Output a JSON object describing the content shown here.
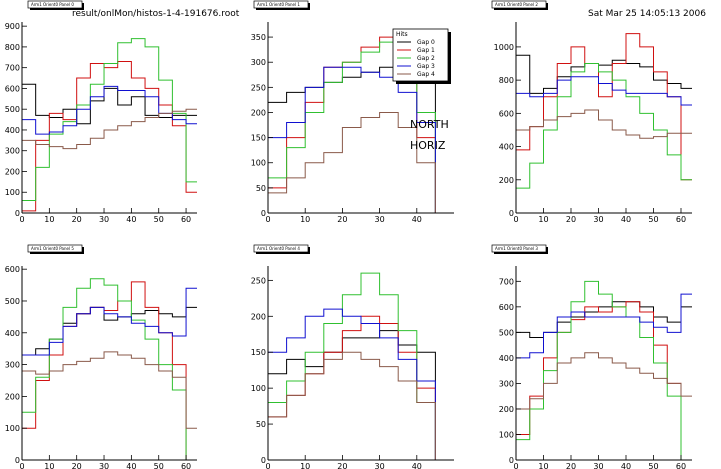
{
  "header": {
    "filename": "result/onlMon/histos-1-4-191676.root",
    "datetime": "Sat Mar 25 14:05:13 2006"
  },
  "annotation": {
    "line1": "NORTH",
    "line2": "HORIZ"
  },
  "legend": {
    "title": "Hits",
    "entries": [
      "Gap 0",
      "Gap 1",
      "Gap 2",
      "Gap 3",
      "Gap 4"
    ]
  },
  "colors": {
    "gap0": "#000000",
    "gap1": "#d01010",
    "gap2": "#30c030",
    "gap3": "#1010d0",
    "gap4": "#8a5a4a",
    "axis": "#000000",
    "frame_shadow": "#000000"
  },
  "chart_data": [
    {
      "type": "line",
      "title": "Arm1 Orient0 Panel 0",
      "xlim": [
        0,
        64
      ],
      "ylim": [
        0,
        920
      ],
      "xticks": [
        0,
        10,
        20,
        30,
        40,
        50,
        60
      ],
      "yticks": [
        0,
        100,
        200,
        300,
        400,
        500,
        600,
        700,
        800,
        900
      ],
      "series": [
        {
          "key": "gap0",
          "x": [
            0,
            5,
            10,
            15,
            20,
            25,
            30,
            35,
            40,
            45,
            50,
            55,
            60
          ],
          "values": [
            620,
            470,
            460,
            500,
            430,
            540,
            600,
            520,
            560,
            470,
            460,
            470,
            470
          ]
        },
        {
          "key": "gap1",
          "x": [
            0,
            5,
            10,
            15,
            20,
            25,
            30,
            35,
            40,
            45,
            50,
            55,
            60
          ],
          "values": [
            10,
            350,
            480,
            450,
            650,
            720,
            700,
            730,
            650,
            600,
            520,
            420,
            100
          ]
        },
        {
          "key": "gap2",
          "x": [
            0,
            5,
            10,
            15,
            20,
            25,
            30,
            35,
            40,
            45,
            50,
            55,
            60
          ],
          "values": [
            60,
            220,
            380,
            440,
            520,
            620,
            720,
            820,
            840,
            800,
            640,
            480,
            150
          ]
        },
        {
          "key": "gap3",
          "x": [
            0,
            5,
            10,
            15,
            20,
            25,
            30,
            35,
            40,
            45,
            50,
            55,
            60
          ],
          "values": [
            450,
            380,
            390,
            420,
            500,
            560,
            610,
            590,
            590,
            560,
            480,
            450,
            430
          ]
        },
        {
          "key": "gap4",
          "x": [
            0,
            5,
            10,
            15,
            20,
            25,
            30,
            35,
            40,
            45,
            50,
            55,
            60
          ],
          "values": [
            350,
            330,
            320,
            310,
            330,
            360,
            400,
            420,
            440,
            460,
            480,
            490,
            500
          ]
        }
      ]
    },
    {
      "type": "line",
      "title": "Arm1 Orient0 Panel 1",
      "xlim": [
        0,
        50
      ],
      "ylim": [
        0,
        380
      ],
      "xticks": [
        0,
        10,
        20,
        30,
        40
      ],
      "yticks": [
        0,
        50,
        100,
        150,
        200,
        250,
        300,
        350
      ],
      "series": [
        {
          "key": "gap0",
          "x": [
            0,
            5,
            10,
            15,
            20,
            25,
            30,
            35,
            40,
            45
          ],
          "values": [
            220,
            240,
            250,
            260,
            270,
            280,
            290,
            280,
            270,
            0
          ]
        },
        {
          "key": "gap1",
          "x": [
            0,
            5,
            10,
            15,
            20,
            25,
            30,
            35,
            40,
            45
          ],
          "values": [
            50,
            150,
            220,
            290,
            300,
            330,
            350,
            280,
            150,
            0
          ]
        },
        {
          "key": "gap2",
          "x": [
            0,
            5,
            10,
            15,
            20,
            25,
            30,
            35,
            40,
            45
          ],
          "values": [
            70,
            130,
            200,
            260,
            300,
            320,
            340,
            330,
            200,
            0
          ]
        },
        {
          "key": "gap3",
          "x": [
            0,
            5,
            10,
            15,
            20,
            25,
            30,
            35,
            40,
            45
          ],
          "values": [
            150,
            180,
            250,
            290,
            290,
            280,
            270,
            240,
            180,
            0
          ]
        },
        {
          "key": "gap4",
          "x": [
            0,
            5,
            10,
            15,
            20,
            25,
            30,
            35,
            40,
            45
          ],
          "values": [
            40,
            70,
            100,
            120,
            170,
            190,
            200,
            170,
            100,
            0
          ]
        }
      ]
    },
    {
      "type": "line",
      "title": "Arm1 Orient0 Panel 2",
      "xlim": [
        0,
        64
      ],
      "ylim": [
        0,
        1150
      ],
      "xticks": [
        0,
        10,
        20,
        30,
        40,
        50,
        60
      ],
      "yticks": [
        0,
        200,
        400,
        600,
        800,
        1000
      ],
      "series": [
        {
          "key": "gap0",
          "x": [
            0,
            5,
            10,
            15,
            20,
            25,
            30,
            35,
            40,
            45,
            50,
            55,
            60
          ],
          "values": [
            950,
            720,
            750,
            820,
            880,
            900,
            890,
            920,
            900,
            880,
            800,
            780,
            750
          ]
        },
        {
          "key": "gap1",
          "x": [
            0,
            5,
            10,
            15,
            20,
            25,
            30,
            35,
            40,
            45,
            50,
            55,
            60
          ],
          "values": [
            380,
            520,
            700,
            900,
            1000,
            900,
            700,
            900,
            1080,
            1000,
            850,
            700,
            200
          ]
        },
        {
          "key": "gap2",
          "x": [
            0,
            5,
            10,
            15,
            20,
            25,
            30,
            35,
            40,
            45,
            50,
            55,
            60
          ],
          "values": [
            150,
            300,
            500,
            700,
            850,
            900,
            850,
            800,
            700,
            600,
            500,
            350,
            200
          ]
        },
        {
          "key": "gap3",
          "x": [
            0,
            5,
            10,
            15,
            20,
            25,
            30,
            35,
            40,
            45,
            50,
            55,
            60
          ],
          "values": [
            720,
            700,
            720,
            800,
            820,
            820,
            780,
            740,
            720,
            720,
            720,
            700,
            650
          ]
        },
        {
          "key": "gap4",
          "x": [
            0,
            5,
            10,
            15,
            20,
            25,
            30,
            35,
            40,
            45,
            50,
            55,
            60
          ],
          "values": [
            500,
            520,
            560,
            580,
            600,
            620,
            560,
            500,
            470,
            450,
            460,
            480,
            480
          ]
        }
      ]
    },
    {
      "type": "line",
      "title": "Arm1 Orient0 Panel 5",
      "xlim": [
        0,
        64
      ],
      "ylim": [
        0,
        610
      ],
      "xticks": [
        0,
        10,
        20,
        30,
        40,
        50,
        60
      ],
      "yticks": [
        0,
        100,
        200,
        300,
        400,
        500,
        600
      ],
      "series": [
        {
          "key": "gap0",
          "x": [
            0,
            5,
            10,
            15,
            20,
            25,
            30,
            35,
            40,
            45,
            50,
            55,
            60
          ],
          "values": [
            330,
            350,
            380,
            430,
            460,
            480,
            440,
            450,
            460,
            470,
            460,
            450,
            480
          ]
        },
        {
          "key": "gap1",
          "x": [
            0,
            5,
            10,
            15,
            20,
            25,
            30,
            35,
            40,
            45,
            50,
            55,
            60
          ],
          "values": [
            100,
            250,
            330,
            420,
            460,
            480,
            470,
            500,
            560,
            480,
            400,
            300,
            0
          ]
        },
        {
          "key": "gap2",
          "x": [
            0,
            5,
            10,
            15,
            20,
            25,
            30,
            35,
            40,
            45,
            50,
            55,
            60
          ],
          "values": [
            150,
            260,
            380,
            480,
            540,
            570,
            550,
            500,
            440,
            380,
            300,
            220,
            0
          ]
        },
        {
          "key": "gap3",
          "x": [
            0,
            5,
            10,
            15,
            20,
            25,
            30,
            35,
            40,
            45,
            50,
            55,
            60
          ],
          "values": [
            330,
            330,
            370,
            420,
            460,
            480,
            460,
            450,
            430,
            420,
            400,
            390,
            540
          ]
        },
        {
          "key": "gap4",
          "x": [
            0,
            5,
            10,
            15,
            20,
            25,
            30,
            35,
            40,
            45,
            50,
            55,
            60
          ],
          "values": [
            280,
            270,
            280,
            300,
            310,
            320,
            340,
            330,
            320,
            300,
            280,
            260,
            100
          ]
        }
      ]
    },
    {
      "type": "line",
      "title": "Arm1 Orient0 Panel 4",
      "xlim": [
        0,
        50
      ],
      "ylim": [
        0,
        270
      ],
      "xticks": [
        0,
        10,
        20,
        30,
        40
      ],
      "yticks": [
        0,
        50,
        100,
        150,
        200,
        250
      ],
      "series": [
        {
          "key": "gap0",
          "x": [
            0,
            5,
            10,
            15,
            20,
            25,
            30,
            35,
            40,
            45
          ],
          "values": [
            120,
            140,
            130,
            150,
            170,
            170,
            180,
            160,
            150,
            0
          ]
        },
        {
          "key": "gap1",
          "x": [
            0,
            5,
            10,
            15,
            20,
            25,
            30,
            35,
            40,
            45
          ],
          "values": [
            60,
            90,
            120,
            150,
            180,
            200,
            190,
            150,
            100,
            0
          ]
        },
        {
          "key": "gap2",
          "x": [
            0,
            5,
            10,
            15,
            20,
            25,
            30,
            35,
            40,
            45
          ],
          "values": [
            80,
            110,
            150,
            190,
            230,
            260,
            230,
            180,
            80,
            0
          ]
        },
        {
          "key": "gap3",
          "x": [
            0,
            5,
            10,
            15,
            20,
            25,
            30,
            35,
            40,
            45
          ],
          "values": [
            150,
            170,
            200,
            210,
            200,
            190,
            170,
            140,
            110,
            0
          ]
        },
        {
          "key": "gap4",
          "x": [
            0,
            5,
            10,
            15,
            20,
            25,
            30,
            35,
            40,
            45
          ],
          "values": [
            60,
            90,
            120,
            140,
            150,
            140,
            130,
            110,
            80,
            0
          ]
        }
      ]
    },
    {
      "type": "line",
      "title": "Arm1 Orient0 Panel 3",
      "xlim": [
        0,
        64
      ],
      "ylim": [
        0,
        760
      ],
      "xticks": [
        0,
        10,
        20,
        30,
        40,
        50,
        60
      ],
      "yticks": [
        0,
        100,
        200,
        300,
        400,
        500,
        600,
        700
      ],
      "series": [
        {
          "key": "gap0",
          "x": [
            0,
            5,
            10,
            15,
            20,
            25,
            30,
            35,
            40,
            45,
            50,
            55,
            60
          ],
          "values": [
            500,
            480,
            500,
            540,
            560,
            580,
            600,
            620,
            620,
            600,
            560,
            540,
            600
          ]
        },
        {
          "key": "gap1",
          "x": [
            0,
            5,
            10,
            15,
            20,
            25,
            30,
            35,
            40,
            45,
            50,
            55,
            60
          ],
          "values": [
            100,
            250,
            400,
            500,
            550,
            600,
            580,
            600,
            620,
            580,
            450,
            300,
            0
          ]
        },
        {
          "key": "gap2",
          "x": [
            0,
            5,
            10,
            15,
            20,
            25,
            30,
            35,
            40,
            45,
            50,
            55,
            60
          ],
          "values": [
            80,
            200,
            350,
            500,
            620,
            700,
            650,
            600,
            560,
            480,
            380,
            250,
            0
          ]
        },
        {
          "key": "gap3",
          "x": [
            0,
            5,
            10,
            15,
            20,
            25,
            30,
            35,
            40,
            45,
            50,
            55,
            60
          ],
          "values": [
            400,
            420,
            500,
            560,
            580,
            560,
            560,
            560,
            560,
            540,
            520,
            500,
            650
          ]
        },
        {
          "key": "gap4",
          "x": [
            0,
            5,
            10,
            15,
            20,
            25,
            30,
            35,
            40,
            45,
            50,
            55,
            60
          ],
          "values": [
            200,
            240,
            300,
            380,
            400,
            420,
            400,
            380,
            360,
            340,
            320,
            300,
            250
          ]
        }
      ]
    }
  ]
}
